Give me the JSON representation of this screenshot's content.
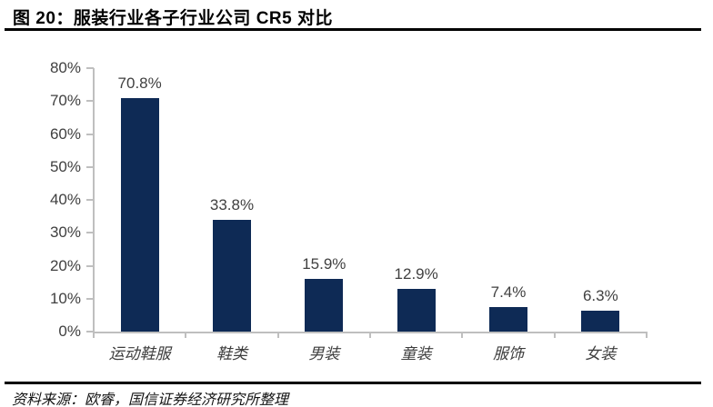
{
  "title": "图 20：服装行业各子行业公司 CR5 对比",
  "source": "资料来源：欧睿，国信证券经济研究所整理",
  "chart_data": {
    "type": "bar",
    "title": "服装行业各子行业公司 CR5 对比",
    "categories": [
      "运动鞋服",
      "鞋类",
      "男装",
      "童装",
      "服饰",
      "女装"
    ],
    "values": [
      70.8,
      33.8,
      15.9,
      12.9,
      7.4,
      6.3
    ],
    "value_labels": [
      "70.8%",
      "33.8%",
      "15.9%",
      "12.9%",
      "7.4%",
      "6.3%"
    ],
    "xlabel": "",
    "ylabel": "",
    "ylim": [
      0,
      80
    ],
    "ytick_labels": [
      "0%",
      "10%",
      "20%",
      "30%",
      "40%",
      "50%",
      "60%",
      "70%",
      "80%"
    ],
    "grid": false,
    "legend_position": "none",
    "colors": {
      "bar": "#0E2A55",
      "axis": "#BFBFBF",
      "tick_label": "#404040",
      "value_label": "#404040",
      "category_label": "#3D3D3D",
      "title": "#000000"
    }
  }
}
